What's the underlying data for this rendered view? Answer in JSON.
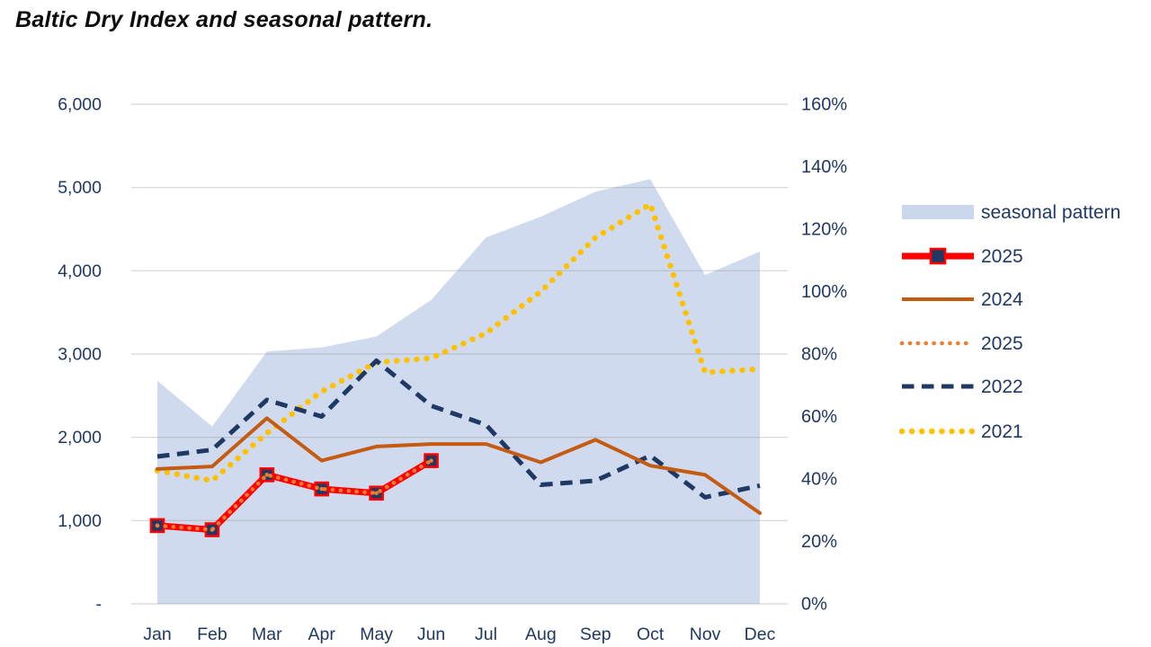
{
  "title": "Baltic Dry Index and seasonal pattern.",
  "colors": {
    "area_fill": "#cbd7ed",
    "red_2025": "#ff0000",
    "marker_fill_2025": "#1f3864",
    "orange_2024": "#c55a11",
    "orange_dotted_2025": "#ed7d31",
    "navy_2022": "#1f3864",
    "yellow_2021": "#ffc000",
    "axis_text": "#1f3864",
    "gridline": "#d2d2d2",
    "title_text": "#0d0d0d"
  },
  "chart_data": {
    "type": "line",
    "title": "Baltic Dry Index and seasonal pattern.",
    "categories": [
      "Jan",
      "Feb",
      "Mar",
      "Apr",
      "May",
      "Jun",
      "Jul",
      "Aug",
      "Sep",
      "Oct",
      "Nov",
      "Dec"
    ],
    "left_axis": {
      "ticks": [
        "6,000",
        "5,000",
        "4,000",
        "3,000",
        "2,000",
        "1,000",
        "-"
      ],
      "min": 0,
      "max": 6000,
      "step": 1000,
      "grid": true
    },
    "right_axis": {
      "ticks": [
        "160%",
        "140%",
        "120%",
        "100%",
        "80%",
        "60%",
        "40%",
        "20%",
        "0%"
      ],
      "min": 0,
      "max": 160,
      "step": 20
    },
    "legend_position": "right",
    "series": [
      {
        "name": "seasonal pattern",
        "type": "area",
        "style": "filled",
        "values": [
          2680,
          2130,
          3030,
          3080,
          3210,
          3650,
          4400,
          4650,
          4950,
          5100,
          3950,
          4230
        ]
      },
      {
        "name": "2025",
        "type": "line",
        "style": "solid-with-square-markers",
        "values": [
          940,
          890,
          1550,
          1380,
          1330,
          1720,
          null,
          null,
          null,
          null,
          null,
          null
        ]
      },
      {
        "name": "2024",
        "type": "line",
        "style": "solid",
        "values": [
          1620,
          1650,
          2230,
          1720,
          1890,
          1920,
          1920,
          1700,
          1970,
          1660,
          1550,
          1090
        ]
      },
      {
        "name": "2025",
        "type": "line",
        "style": "dotted",
        "values": [
          940,
          890,
          1550,
          1380,
          1330,
          1720,
          null,
          null,
          null,
          null,
          null,
          null
        ]
      },
      {
        "name": "2022",
        "type": "line",
        "style": "dashed",
        "values": [
          1770,
          1850,
          2450,
          2250,
          2920,
          2380,
          2150,
          1430,
          1480,
          1780,
          1280,
          1420
        ]
      },
      {
        "name": "2021",
        "type": "line",
        "style": "dotted",
        "values": [
          1600,
          1480,
          2050,
          2550,
          2900,
          2950,
          3250,
          3750,
          4400,
          4800,
          2780,
          2820
        ]
      }
    ]
  },
  "legend": {
    "items": [
      {
        "label": "seasonal pattern",
        "swatch": "area"
      },
      {
        "label": "2025",
        "swatch": "red-marker-line"
      },
      {
        "label": "2024",
        "swatch": "orange-solid-line"
      },
      {
        "label": "2025",
        "swatch": "orange-dotted-line"
      },
      {
        "label": "2022",
        "swatch": "navy-dashed-line"
      },
      {
        "label": "2021",
        "swatch": "yellow-dotted-line"
      }
    ]
  }
}
